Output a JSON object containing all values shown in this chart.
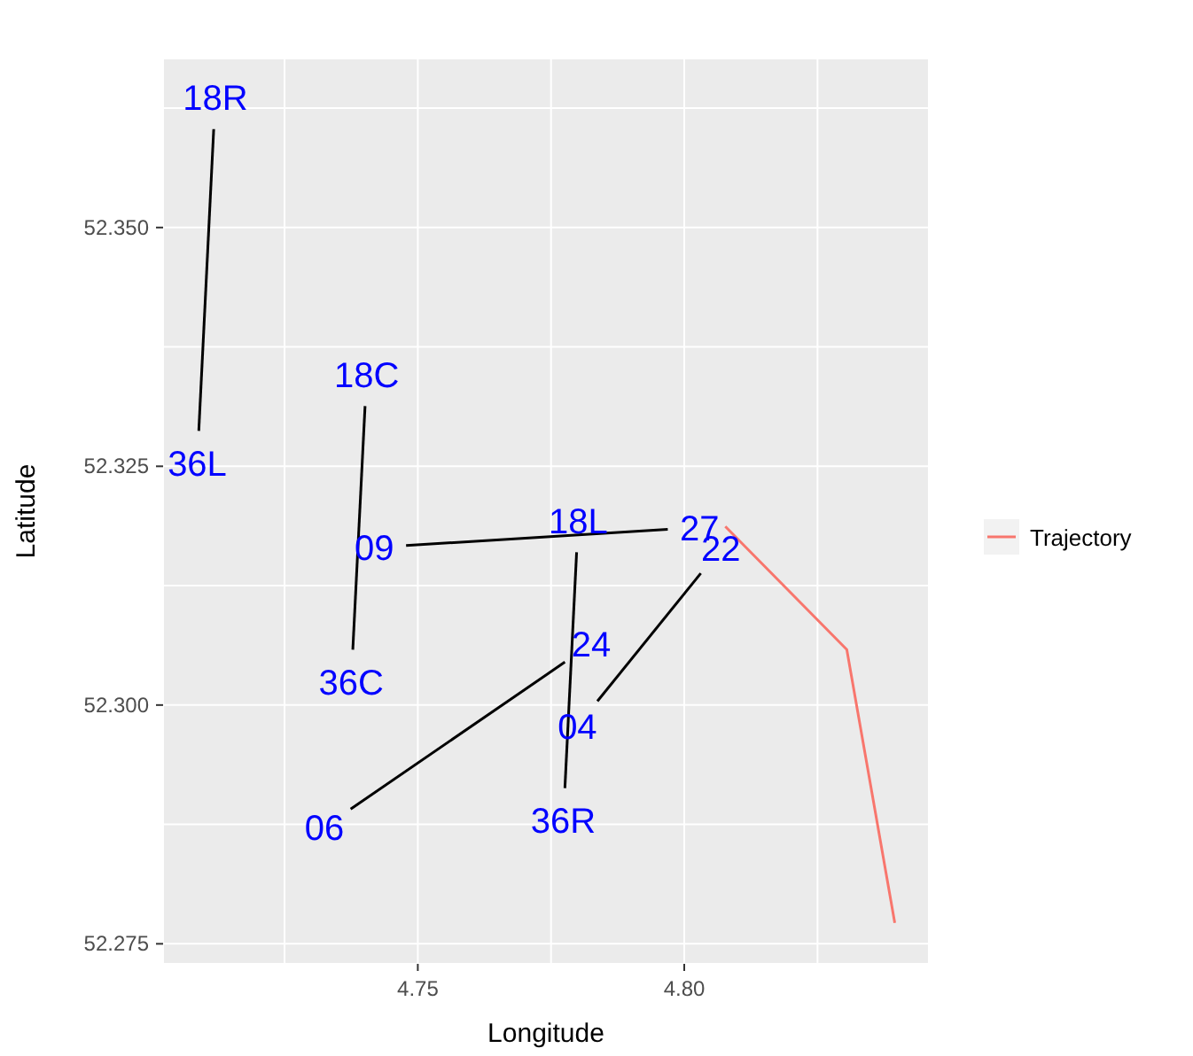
{
  "chart_data": {
    "type": "line",
    "xlabel": "Longitude",
    "ylabel": "Latitude",
    "xlim": [
      4.7022,
      4.8459
    ],
    "ylim": [
      52.2729,
      52.3677
    ],
    "xticks": [
      {
        "value": 4.725,
        "label": null
      },
      {
        "value": 4.75,
        "label": "4.75"
      },
      {
        "value": 4.775,
        "label": null
      },
      {
        "value": 4.8,
        "label": "4.80"
      },
      {
        "value": 4.825,
        "label": null
      }
    ],
    "yticks": [
      {
        "value": 52.275,
        "label": "52.275"
      },
      {
        "value": 52.2875,
        "label": null
      },
      {
        "value": 52.3,
        "label": "52.300"
      },
      {
        "value": 52.3125,
        "label": null
      },
      {
        "value": 52.325,
        "label": "52.325"
      },
      {
        "value": 52.3375,
        "label": null
      },
      {
        "value": 52.35,
        "label": "52.350"
      },
      {
        "value": 52.3625,
        "label": null
      }
    ],
    "grid": true,
    "legend": "right",
    "line_style": "solid",
    "series": [
      {
        "type": "line",
        "color": "#000000",
        "x": [
          4.7117,
          4.7089
        ],
        "values": [
          52.3603,
          52.3287
        ]
      },
      {
        "type": "line",
        "color": "#000000",
        "x": [
          4.7401,
          4.7378
        ],
        "values": [
          52.3313,
          52.3058
        ]
      },
      {
        "type": "line",
        "color": "#000000",
        "x": [
          4.7478,
          4.7969
        ],
        "values": [
          52.3167,
          52.3184
        ]
      },
      {
        "type": "line",
        "color": "#000000",
        "x": [
          4.7798,
          4.7776
        ],
        "values": [
          52.316,
          52.2913
        ]
      },
      {
        "type": "line",
        "color": "#000000",
        "x": [
          4.7374,
          4.7776
        ],
        "values": [
          52.2891,
          52.3045
        ]
      },
      {
        "type": "line",
        "color": "#000000",
        "x": [
          4.7837,
          4.8031
        ],
        "values": [
          52.3004,
          52.3138
        ]
      },
      {
        "name": "Trajectory",
        "color": "#f8766d",
        "x": [
          4.8077,
          4.8305,
          4.8395
        ],
        "values": [
          52.3187,
          52.3058,
          52.2772
        ]
      }
    ],
    "annotations": [
      {
        "text": "18R",
        "x": 4.7117,
        "y": 52.3603
      },
      {
        "text": "36L",
        "x": 4.7089,
        "y": 52.3287
      },
      {
        "text": "18C",
        "x": 4.7401,
        "y": 52.3313
      },
      {
        "text": "36C",
        "x": 4.7378,
        "y": 52.3058
      },
      {
        "text": "09",
        "x": 4.7478,
        "y": 52.3167
      },
      {
        "text": "27",
        "x": 4.7969,
        "y": 52.3184
      },
      {
        "text": "18L",
        "x": 4.7798,
        "y": 52.316
      },
      {
        "text": "36R",
        "x": 4.7776,
        "y": 52.2913
      },
      {
        "text": "24",
        "x": 4.7776,
        "y": 52.3045
      },
      {
        "text": "04",
        "x": 4.7837,
        "y": 52.3004
      },
      {
        "text": "22",
        "x": 4.8031,
        "y": 52.3138
      },
      {
        "text": "06",
        "x": 4.7374,
        "y": 52.2891
      }
    ]
  }
}
